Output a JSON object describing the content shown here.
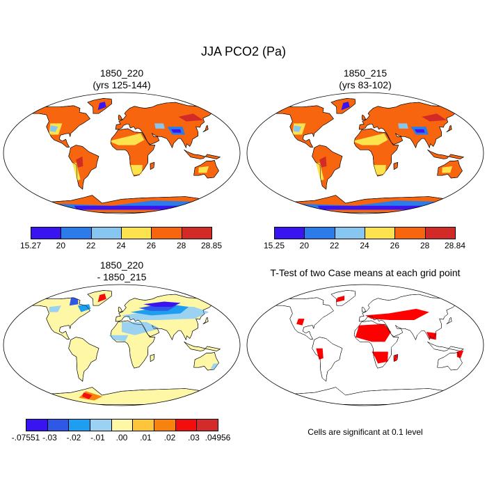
{
  "figure": {
    "title": "JJA PCO2 (Pa)"
  },
  "panels": [
    {
      "id": "p1",
      "title": "1850_220\n(yrs 125-144)",
      "type": "absolute"
    },
    {
      "id": "p2",
      "title": "1850_215\n(yrs 83-102)",
      "type": "absolute"
    },
    {
      "id": "p3",
      "title": "1850_220\n- 1850_215",
      "type": "difference"
    },
    {
      "id": "p4",
      "title": "T-Test of two Case means at each grid point",
      "type": "significance",
      "note": "Cells are significant at 0.1 level"
    }
  ],
  "colorbars": {
    "abs1": {
      "colors": [
        "#3a14f0",
        "#2b7be8",
        "#87c6ee",
        "#fce34e",
        "#f7650e",
        "#d22a26"
      ],
      "labels": [
        "15.27",
        "20",
        "22",
        "24",
        "26",
        "28",
        "28.85"
      ]
    },
    "abs2": {
      "colors": [
        "#3a14f0",
        "#2b7be8",
        "#87c6ee",
        "#fce34e",
        "#f7650e",
        "#d22a26"
      ],
      "labels": [
        "15.25",
        "20",
        "22",
        "24",
        "26",
        "28",
        "28.84"
      ]
    },
    "diff": {
      "colors": [
        "#3a14f0",
        "#2f58e6",
        "#1e9ef0",
        "#9bd2f2",
        "#fdf7a6",
        "#fcc53a",
        "#f7830e",
        "#f40d0d",
        "#d42a2a"
      ],
      "labels": [
        "-.07551",
        "-.03",
        "-.02",
        "-.01",
        ".00",
        ".01",
        ".02",
        ".03",
        ".04956"
      ]
    }
  },
  "map_colors": {
    "ocean": "#ffffff",
    "abs_land": "#f7650e",
    "abs_dry": "#fce34e",
    "abs_low": "#2b7be8",
    "abs_lowest": "#3a14f0",
    "abs_mid": "#87c6ee",
    "abs_high": "#d22a26",
    "diff_land": "#fdf7a6",
    "diff_neg1": "#9bd2f2",
    "diff_neg2": "#1e9ef0",
    "diff_neg3": "#2f58e6",
    "diff_neg4": "#3a14f0",
    "diff_pos": "#f7830e",
    "diff_pos2": "#f40d0d",
    "sig": "#ff0000"
  }
}
